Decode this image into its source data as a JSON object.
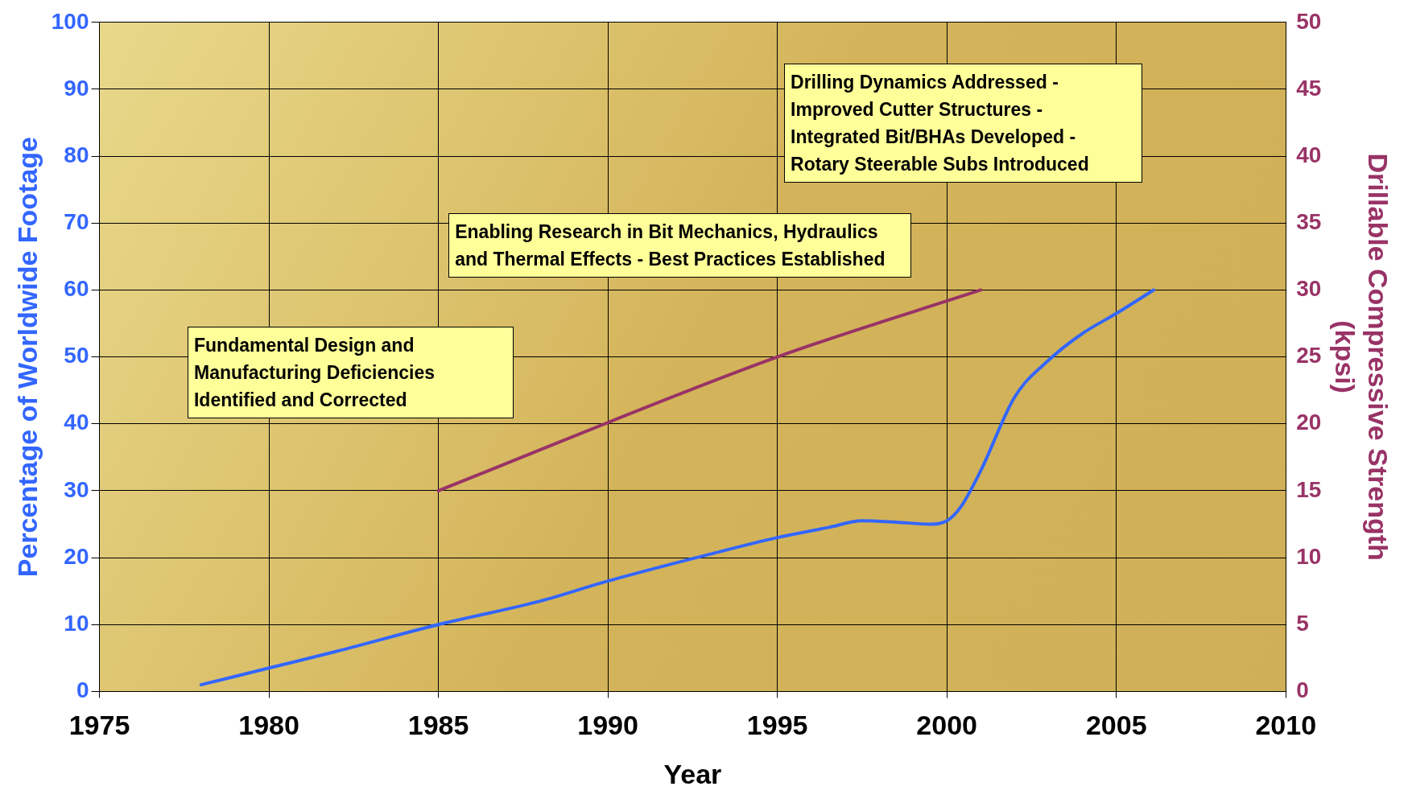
{
  "chart_data": {
    "type": "line",
    "xlabel": "Year",
    "ylabel": "Percentage of Worldwide Footage",
    "y2label": "Drillable Compressive Strength (kpsi)",
    "series": [
      {
        "color": "#3366ff",
        "x": [
          1978,
          1980,
          1982,
          1985,
          1988,
          1990,
          1993,
          1995,
          1996.5,
          1997.5,
          1998.5,
          1999.5,
          2000,
          2000.4,
          2001,
          2002,
          2003,
          2004,
          2005,
          2006.1
        ],
        "values": [
          1,
          3.5,
          6,
          10,
          13.5,
          16.5,
          20.5,
          23,
          24.5,
          25.5,
          25.3,
          25,
          25.5,
          27.5,
          33,
          44,
          49.5,
          53.5,
          56.5,
          60
        ]
      },
      {
        "color": "#993366",
        "axis": "y2",
        "x": [
          1985,
          1995,
          2001
        ],
        "values": [
          15,
          25,
          30
        ]
      }
    ],
    "xlim": [
      1975,
      2010
    ],
    "xticks": [
      1975,
      1980,
      1985,
      1990,
      1995,
      2000,
      2005,
      2010
    ],
    "ylim": [
      0,
      100
    ],
    "yticks": [
      0,
      10,
      20,
      30,
      40,
      50,
      60,
      70,
      80,
      90,
      100
    ],
    "y2lim": [
      0,
      50
    ],
    "y2ticks": [
      0,
      5,
      10,
      15,
      20,
      25,
      30,
      35,
      40,
      45,
      50
    ],
    "grid": true,
    "legend": false,
    "marker": "none",
    "line_style": "solid",
    "annotations": [
      "Fundamental Design and Manufacturing Deficiencies Identified and Corrected",
      "Enabling Research in Bit Mechanics, Hydraulics and Thermal Effects - Best Practices Established",
      "Drilling Dynamics Addressed - Improved Cutter Structures - Integrated Bit/BHAs Developed - Rotary Steerable Subs Introduced"
    ]
  }
}
